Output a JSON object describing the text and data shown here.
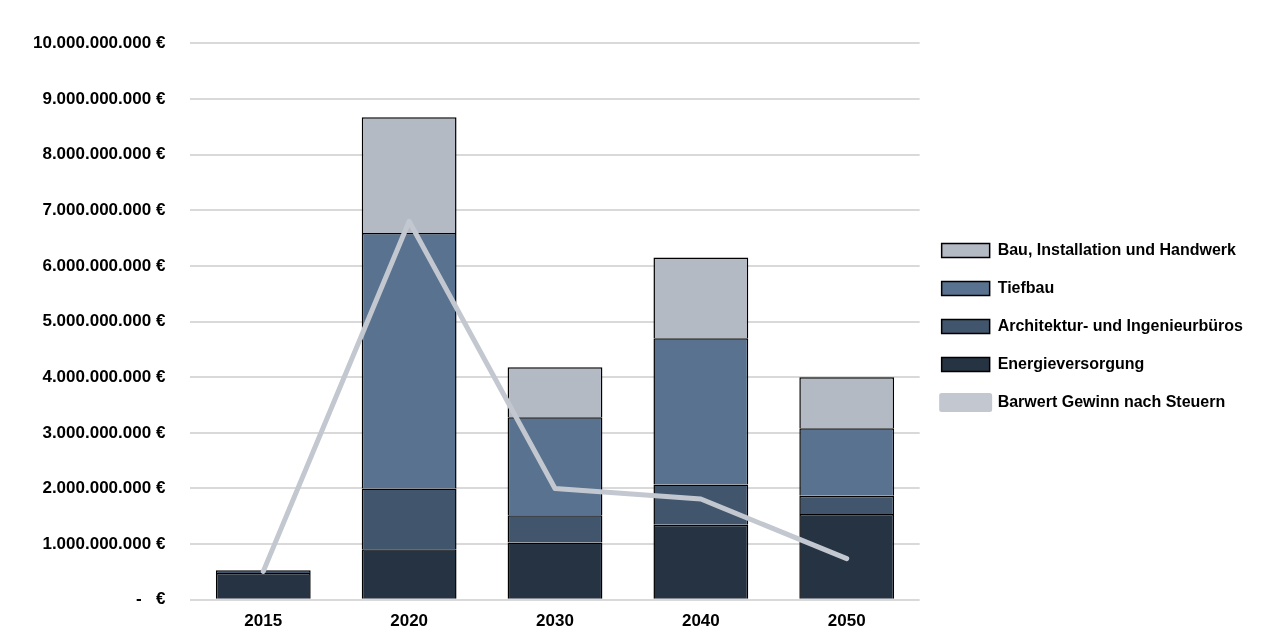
{
  "chart_data": {
    "type": "bar",
    "stacked": true,
    "categories": [
      "2015",
      "2020",
      "2030",
      "2040",
      "2050"
    ],
    "series": [
      {
        "name": "Energieversorgung",
        "color": "#263342",
        "values": [
          480000000,
          910000000,
          1030000000,
          1350000000,
          1540000000
        ]
      },
      {
        "name": "Architektur- und Ingenieurbüros",
        "color": "#41566d",
        "values": [
          50000000,
          1090000000,
          490000000,
          720000000,
          330000000
        ]
      },
      {
        "name": "Tiefbau",
        "color": "#58728f",
        "values": [
          0,
          4590000000,
          1760000000,
          2630000000,
          1210000000
        ]
      },
      {
        "name": "Bau, Installation und Handwerk",
        "color": "#b3bac4",
        "values": [
          0,
          2080000000,
          900000000,
          1450000000,
          920000000
        ]
      },
      {
        "name": "Barwert Gewinn nach Steuern",
        "type": "line",
        "color": "#c3c8d0",
        "values": [
          510000000,
          6800000000,
          2000000000,
          1810000000,
          740000000
        ]
      }
    ],
    "ylim": [
      0,
      10000000000
    ],
    "yticks": [
      {
        "value": 0,
        "label": "-   €"
      },
      {
        "value": 1000000000,
        "label": "1.000.000.000 €"
      },
      {
        "value": 2000000000,
        "label": "2.000.000.000 €"
      },
      {
        "value": 3000000000,
        "label": "3.000.000.000 €"
      },
      {
        "value": 4000000000,
        "label": "4.000.000.000 €"
      },
      {
        "value": 5000000000,
        "label": "5.000.000.000 €"
      },
      {
        "value": 6000000000,
        "label": "6.000.000.000 €"
      },
      {
        "value": 7000000000,
        "label": "7.000.000.000 €"
      },
      {
        "value": 8000000000,
        "label": "8.000.000.000 €"
      },
      {
        "value": 9000000000,
        "label": "9.000.000.000 €"
      },
      {
        "value": 10000000000,
        "label": "10.000.000.000 €"
      }
    ],
    "grid": "y",
    "legend": "right",
    "marker": "none"
  }
}
